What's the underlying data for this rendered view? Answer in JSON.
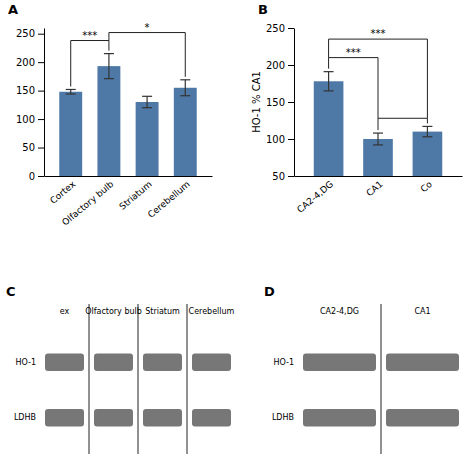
{
  "chart_data": [
    {
      "type": "bar",
      "title": "A",
      "categories": [
        "Cortex",
        "Olfactory bulb",
        "Striatum",
        "Cerebellum"
      ],
      "values": [
        148,
        193,
        130,
        155
      ],
      "errors": [
        4,
        22,
        10,
        14
      ],
      "ylim": [
        0,
        260
      ],
      "yticks": [
        0,
        50,
        100,
        150,
        200,
        250
      ],
      "annotations": [
        {
          "from": "Cortex",
          "to": "Olfactory bulb",
          "y": 238,
          "text": "***"
        },
        {
          "from": "Olfactory bulb",
          "to": "Cerebellum",
          "y": 252,
          "text": "*"
        }
      ]
    },
    {
      "type": "bar",
      "title": "B",
      "categories": [
        "CA2-4,DG",
        "CA1",
        "Co"
      ],
      "values": [
        178,
        100,
        110
      ],
      "errors": [
        13,
        8,
        7
      ],
      "ylabel": "HO-1 % CA1",
      "ylim": [
        50,
        250
      ],
      "yticks": [
        50,
        100,
        150,
        200,
        250
      ],
      "annotations": [
        {
          "from": "CA2-4,DG",
          "to": "CA1",
          "y": 210,
          "text": "***"
        },
        {
          "from": "CA2-4,DG",
          "to": "Co",
          "y": 235,
          "text": "***"
        },
        {
          "from": "CA1",
          "to": "Co",
          "y": 128
        }
      ]
    },
    {
      "type": "blot",
      "title": "C",
      "labels": [
        "ex",
        "Olfactory bulb",
        "Striatum",
        "Cerebellum"
      ],
      "row_labels": [
        "HO-1",
        "LDHB"
      ]
    },
    {
      "type": "blot",
      "title": "D",
      "labels": [
        "CA2-4,DG",
        "CA1"
      ],
      "row_labels": [
        "HO-1",
        "LDHB"
      ]
    }
  ]
}
